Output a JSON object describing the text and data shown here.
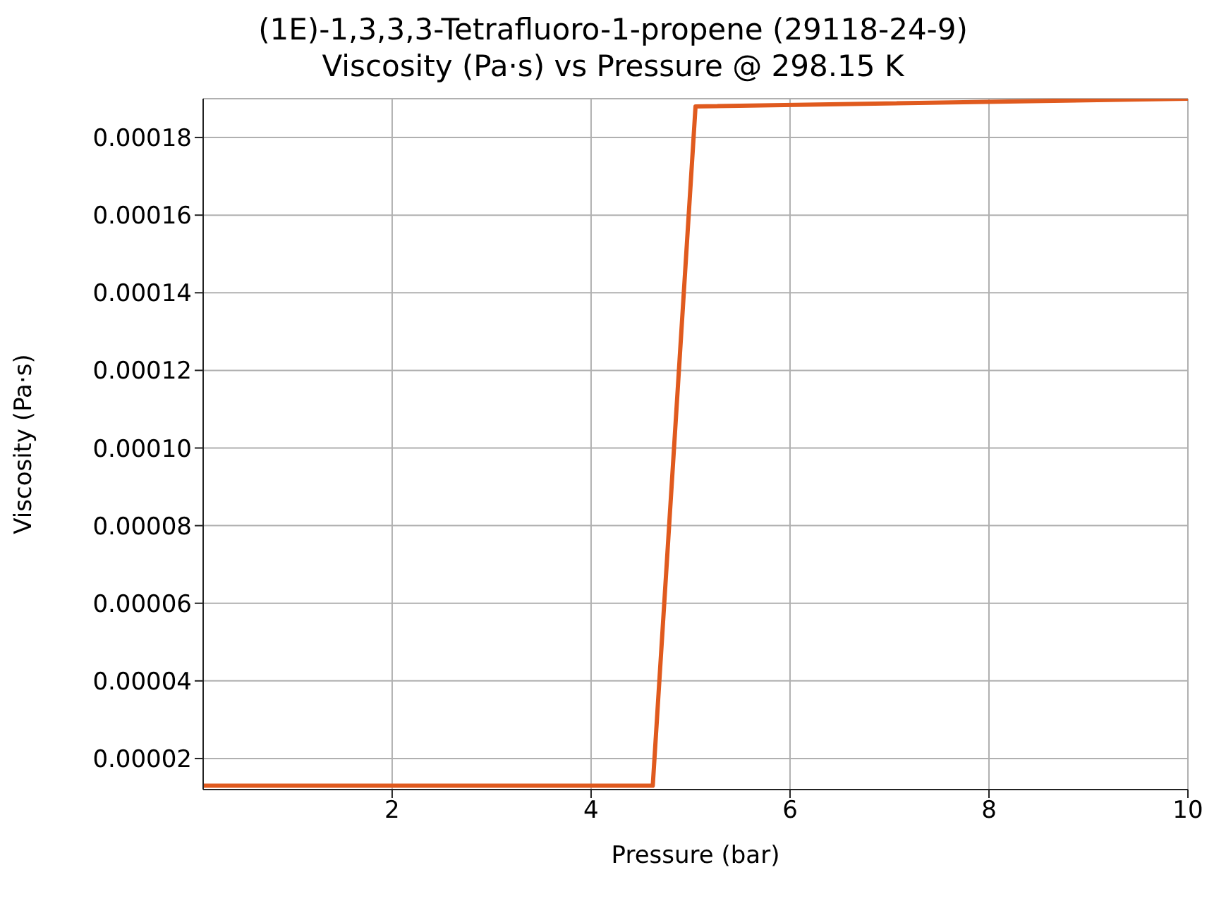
{
  "chart_data": {
    "type": "line",
    "title": "(1E)-1,3,3,3-Tetrafluoro-1-propene (29118-24-9)\nViscosity (Pa·s) vs Pressure @ 298.15 K",
    "xlabel": "Pressure (bar)",
    "ylabel": "Viscosity (Pa·s)",
    "x": [
      0.1,
      4.62,
      5.05,
      10
    ],
    "series": [
      {
        "color": "#e05a1e",
        "values": [
          1.3e-05,
          1.3e-05,
          0.000188,
          0.00019
        ]
      }
    ],
    "xlim": [
      0.1,
      10
    ],
    "xticks": [
      2,
      4,
      6,
      8,
      10
    ],
    "ylim": [
      1.2e-05,
      0.00019
    ],
    "yticks": [
      {
        "value": 2e-05,
        "label": "0.00002"
      },
      {
        "value": 4e-05,
        "label": "0.00004"
      },
      {
        "value": 6e-05,
        "label": "0.00006"
      },
      {
        "value": 8e-05,
        "label": "0.00008"
      },
      {
        "value": 0.0001,
        "label": "0.00010"
      },
      {
        "value": 0.00012,
        "label": "0.00012"
      },
      {
        "value": 0.00014,
        "label": "0.00014"
      },
      {
        "value": 0.00016,
        "label": "0.00016"
      },
      {
        "value": 0.00018,
        "label": "0.00018"
      }
    ],
    "grid": true,
    "marker": "none",
    "line_style": "solid",
    "legend": false
  }
}
